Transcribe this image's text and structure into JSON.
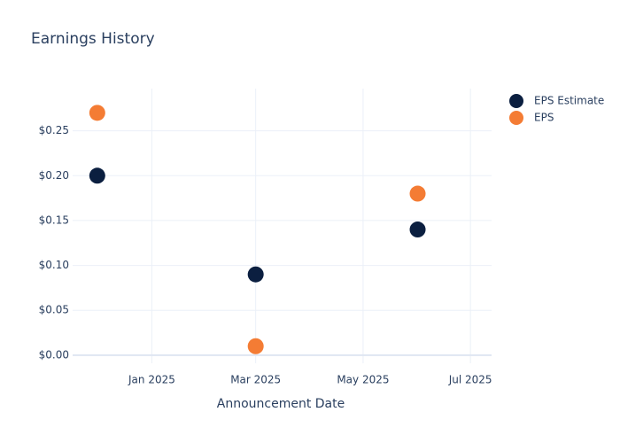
{
  "chart_data": {
    "type": "scatter",
    "title": "Earnings History",
    "x_label": "Announcement Date",
    "x": [
      "2024-12",
      "2025-03",
      "2025-06"
    ],
    "series": [
      {
        "name": "EPS Estimate",
        "color": "#0b1f40",
        "values": [
          0.2,
          0.09,
          0.14
        ]
      },
      {
        "name": "EPS",
        "color": "#f47c34",
        "values": [
          0.27,
          0.01,
          0.18
        ]
      }
    ],
    "xlim": [
      "2024-11-17",
      "2025-07-13"
    ],
    "xticks": [
      {
        "value": "2025-01",
        "label": "Jan 2025"
      },
      {
        "value": "2025-03",
        "label": "Mar 2025"
      },
      {
        "value": "2025-05",
        "label": "May 2025"
      },
      {
        "value": "2025-07",
        "label": "Jul 2025"
      }
    ],
    "ylim": [
      -0.009,
      0.297
    ],
    "yticks": [
      {
        "value": 0,
        "label": "$0.00"
      },
      {
        "value": 0.05,
        "label": "$0.05"
      },
      {
        "value": 0.1,
        "label": "$0.10"
      },
      {
        "value": 0.15,
        "label": "$0.15"
      },
      {
        "value": 0.2,
        "label": "$0.20"
      },
      {
        "value": 0.25,
        "label": "$0.25"
      }
    ],
    "grid": true,
    "legend": "top-right"
  }
}
